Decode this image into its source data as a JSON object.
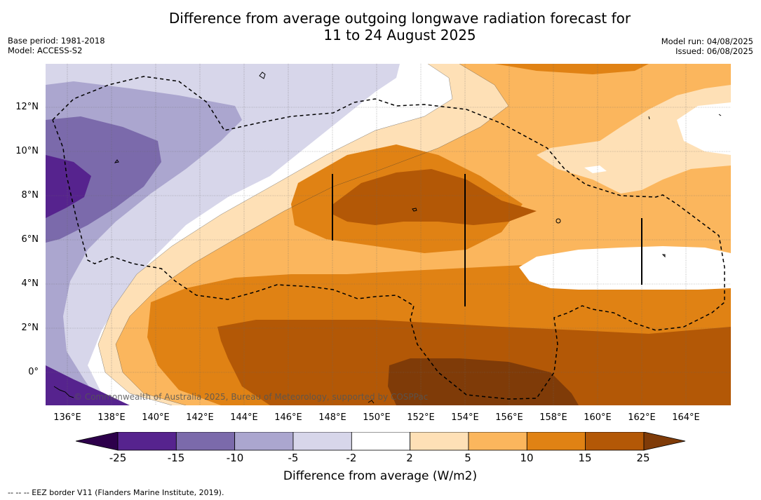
{
  "title_line1": "Difference from average outgoing longwave radiation forecast for",
  "title_line2": "11 to 24 August 2025",
  "meta_left": {
    "base_period": "Base period: 1981-2018",
    "model": "Model: ACCESS-S2"
  },
  "meta_right": {
    "model_run": "Model run: 04/08/2025",
    "issued": "Issued: 06/08/2025"
  },
  "map": {
    "lon_ticks": [
      "136°E",
      "138°E",
      "140°E",
      "142°E",
      "144°E",
      "146°E",
      "148°E",
      "150°E",
      "152°E",
      "154°E",
      "156°E",
      "158°E",
      "160°E",
      "162°E",
      "164°E"
    ],
    "lat_ticks": [
      "12°N",
      "10°N",
      "8°N",
      "6°N",
      "4°N",
      "2°N",
      "0°"
    ],
    "credit": "© Commonwealth of Australia 2025, Bureau of Meteorology, supported by COSPPac"
  },
  "colorbar": {
    "ticks": [
      "-25",
      "-15",
      "-10",
      "-5",
      "-2",
      "2",
      "5",
      "10",
      "15",
      "25"
    ],
    "colors": [
      "#56238e",
      "#7b6aab",
      "#aba6cf",
      "#d7d6ea",
      "#ffffff",
      "#fee0b6",
      "#fbb65d",
      "#e08214",
      "#b35806",
      "#7f3b08"
    ],
    "under_color": "#2d004b",
    "over_color": "#7f3b08",
    "label": "Difference from average (W/m2)"
  },
  "footnote": "--  --  -- EEZ border V11 (Flanders Marine Institute, 2019)."
}
